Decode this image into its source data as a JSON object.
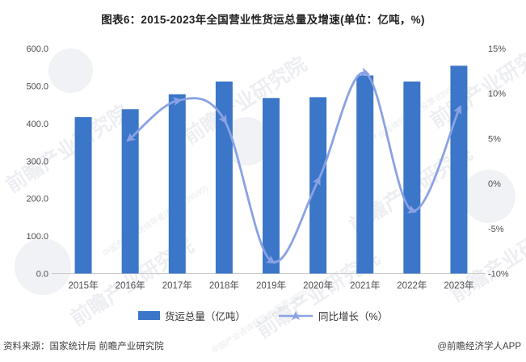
{
  "title": "图表6：2015-2023年全国营业性货运总量及增速(单位：亿吨，%)",
  "legend": {
    "items": [
      {
        "label": "货运总量（亿吨）",
        "type": "bar"
      },
      {
        "label": "同比增长（%）",
        "type": "line"
      }
    ]
  },
  "footer": {
    "source": "资料来源：国家统计局 前瞻产业研究院",
    "credit": "@前瞻经济学人APP"
  },
  "watermark": {
    "main": "前瞻产业研究院",
    "sub": "中国产业咨询领导者(股票:839599)"
  },
  "chart_data": {
    "type": "bar+line",
    "title": "图表6：2015-2023年全国营业性货运总量及增速(单位：亿吨，%)",
    "categories": [
      "2015年",
      "2016年",
      "2017年",
      "2018年",
      "2019年",
      "2020年",
      "2021年",
      "2022年",
      "2023年"
    ],
    "series": [
      {
        "name": "货运总量（亿吨）",
        "type": "bar",
        "axis": "left",
        "color": "#3B76C8",
        "values": [
          417,
          438,
          478,
          512,
          468,
          470,
          528,
          512,
          554
        ]
      },
      {
        "name": "同比增长（%）",
        "type": "line",
        "axis": "right",
        "color": "#8AA2E4",
        "values": [
          null,
          5.0,
          9.2,
          7.1,
          -8.6,
          0.3,
          12.3,
          -3.0,
          8.2
        ]
      }
    ],
    "yaxis_left": {
      "min": 0,
      "max": 600,
      "ticks": [
        "600.0",
        "500.0",
        "400.0",
        "300.0",
        "200.0",
        "100.0",
        "0.0"
      ],
      "tick_values": [
        600,
        500,
        400,
        300,
        200,
        100,
        0
      ]
    },
    "yaxis_right": {
      "min": -10,
      "max": 15,
      "ticks": [
        "15%",
        "10%",
        "5%",
        "0%",
        "-5%",
        "-10%"
      ],
      "tick_values": [
        15,
        10,
        5,
        0,
        -5,
        -10
      ]
    },
    "grid": false,
    "legend_position": "bottom",
    "axis_label_color": "#4d4d4d",
    "axis_line_color": "#cccccc"
  }
}
